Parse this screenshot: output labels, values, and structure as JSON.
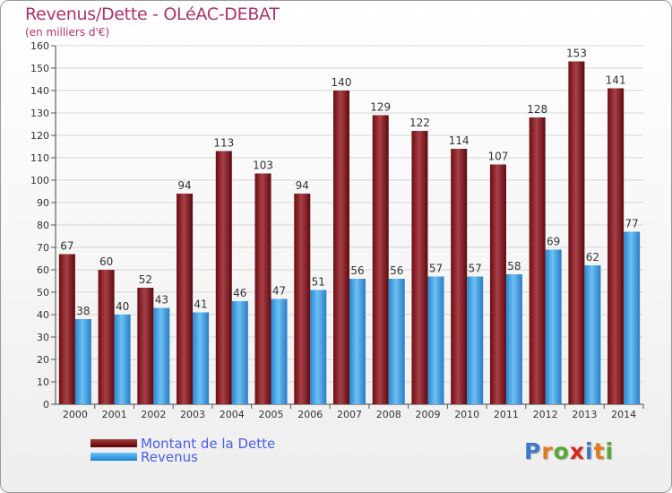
{
  "header": {
    "title": "Revenus/Dette - OLéAC-DEBAT",
    "subtitle": "(en milliers d'€)"
  },
  "colors": {
    "debt": "#7a1418",
    "revenue": "#3f9ee6",
    "title": "#b0306a",
    "legend_text": "#4a5ee8"
  },
  "legend": {
    "items": [
      {
        "label": "Montant de la Dette",
        "color": "#7a1418"
      },
      {
        "label": "Revenus",
        "color": "#3f9ee6"
      }
    ]
  },
  "logo": {
    "text": "Proxiti",
    "letter_colors": [
      "#3c78c8",
      "#e07a1a",
      "#58a83a",
      "#d8261e",
      "#3c78c8",
      "#e07a1a",
      "#58a83a"
    ]
  },
  "chart_data": {
    "type": "bar",
    "title": "Revenus/Dette - OLéAC-DEBAT",
    "subtitle": "(en milliers d'€)",
    "xlabel": "",
    "ylabel": "",
    "ylim": [
      0,
      160
    ],
    "y_ticks": [
      0,
      10,
      20,
      30,
      40,
      50,
      60,
      70,
      80,
      90,
      100,
      110,
      120,
      130,
      140,
      150,
      160
    ],
    "grid": true,
    "legend_position": "bottom-left",
    "categories": [
      "2000",
      "2001",
      "2002",
      "2003",
      "2004",
      "2005",
      "2006",
      "2007",
      "2008",
      "2009",
      "2010",
      "2011",
      "2012",
      "2013",
      "2014"
    ],
    "series": [
      {
        "name": "Montant de la Dette",
        "color": "#7a1418",
        "values": [
          67,
          60,
          52,
          94,
          113,
          103,
          94,
          140,
          129,
          122,
          114,
          107,
          128,
          153,
          141
        ]
      },
      {
        "name": "Revenus",
        "color": "#3f9ee6",
        "values": [
          38,
          40,
          43,
          41,
          46,
          47,
          51,
          56,
          56,
          57,
          57,
          58,
          69,
          62,
          77
        ]
      }
    ]
  }
}
